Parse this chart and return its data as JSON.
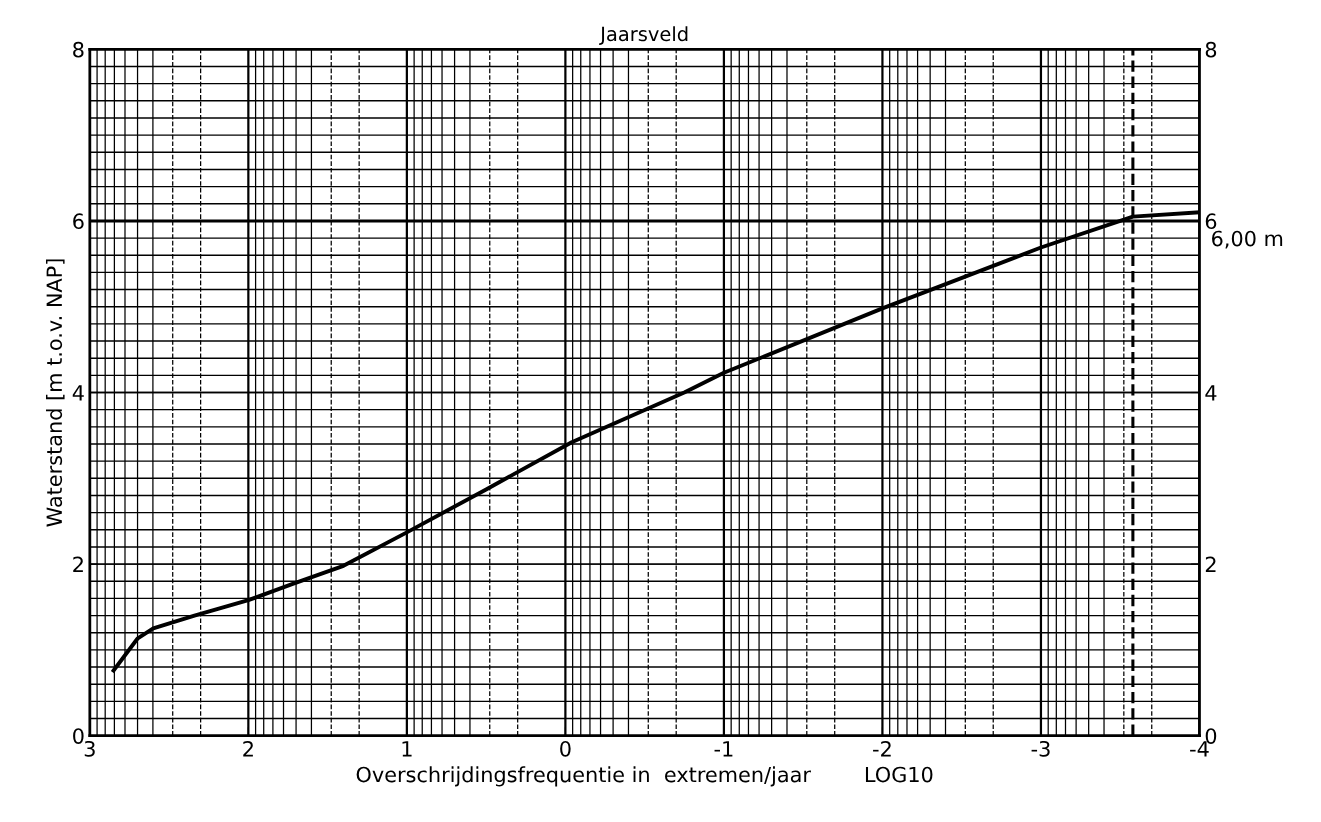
{
  "chart_data": {
    "type": "line",
    "title": "Jaarsveld",
    "xlabel": "Overschrijdingsfrequentie in  extremen/jaar        LOG10",
    "ylabel": "Waterstand [m t.o.v. NAP]",
    "x": [
      2.85,
      2.7,
      2.6,
      2.34,
      2.0,
      1.72,
      1.4,
      1.0,
      0.5,
      -0.04,
      -0.75,
      -1.0,
      -2.0,
      -3.0,
      -3.58,
      -4.0
    ],
    "series": [
      {
        "color": "#000000",
        "values": [
          0.76,
          1.13,
          1.25,
          1.4,
          1.58,
          1.77,
          1.98,
          2.37,
          2.87,
          3.42,
          4.0,
          4.23,
          4.98,
          5.69,
          6.05,
          6.1
        ]
      }
    ],
    "xlim": [
      3,
      -4
    ],
    "xticks": [
      3,
      2,
      1,
      0,
      -1,
      -2,
      -3,
      -4
    ],
    "ylim": [
      0,
      8
    ],
    "yticks": [
      0,
      2,
      4,
      6,
      8
    ],
    "y2lim": [
      0,
      8
    ],
    "y2ticks": [
      0,
      2,
      4,
      6,
      8
    ],
    "ref_lines": [
      {
        "axis": "y",
        "value": 6,
        "label": "6,00 m",
        "color": "#000000",
        "line_style": "solid"
      },
      {
        "axis": "x",
        "value": -3.58,
        "color": "#000000",
        "line_style": "dashed"
      }
    ],
    "grid": true,
    "legend": false,
    "marker": "none",
    "line_style": "solid"
  }
}
